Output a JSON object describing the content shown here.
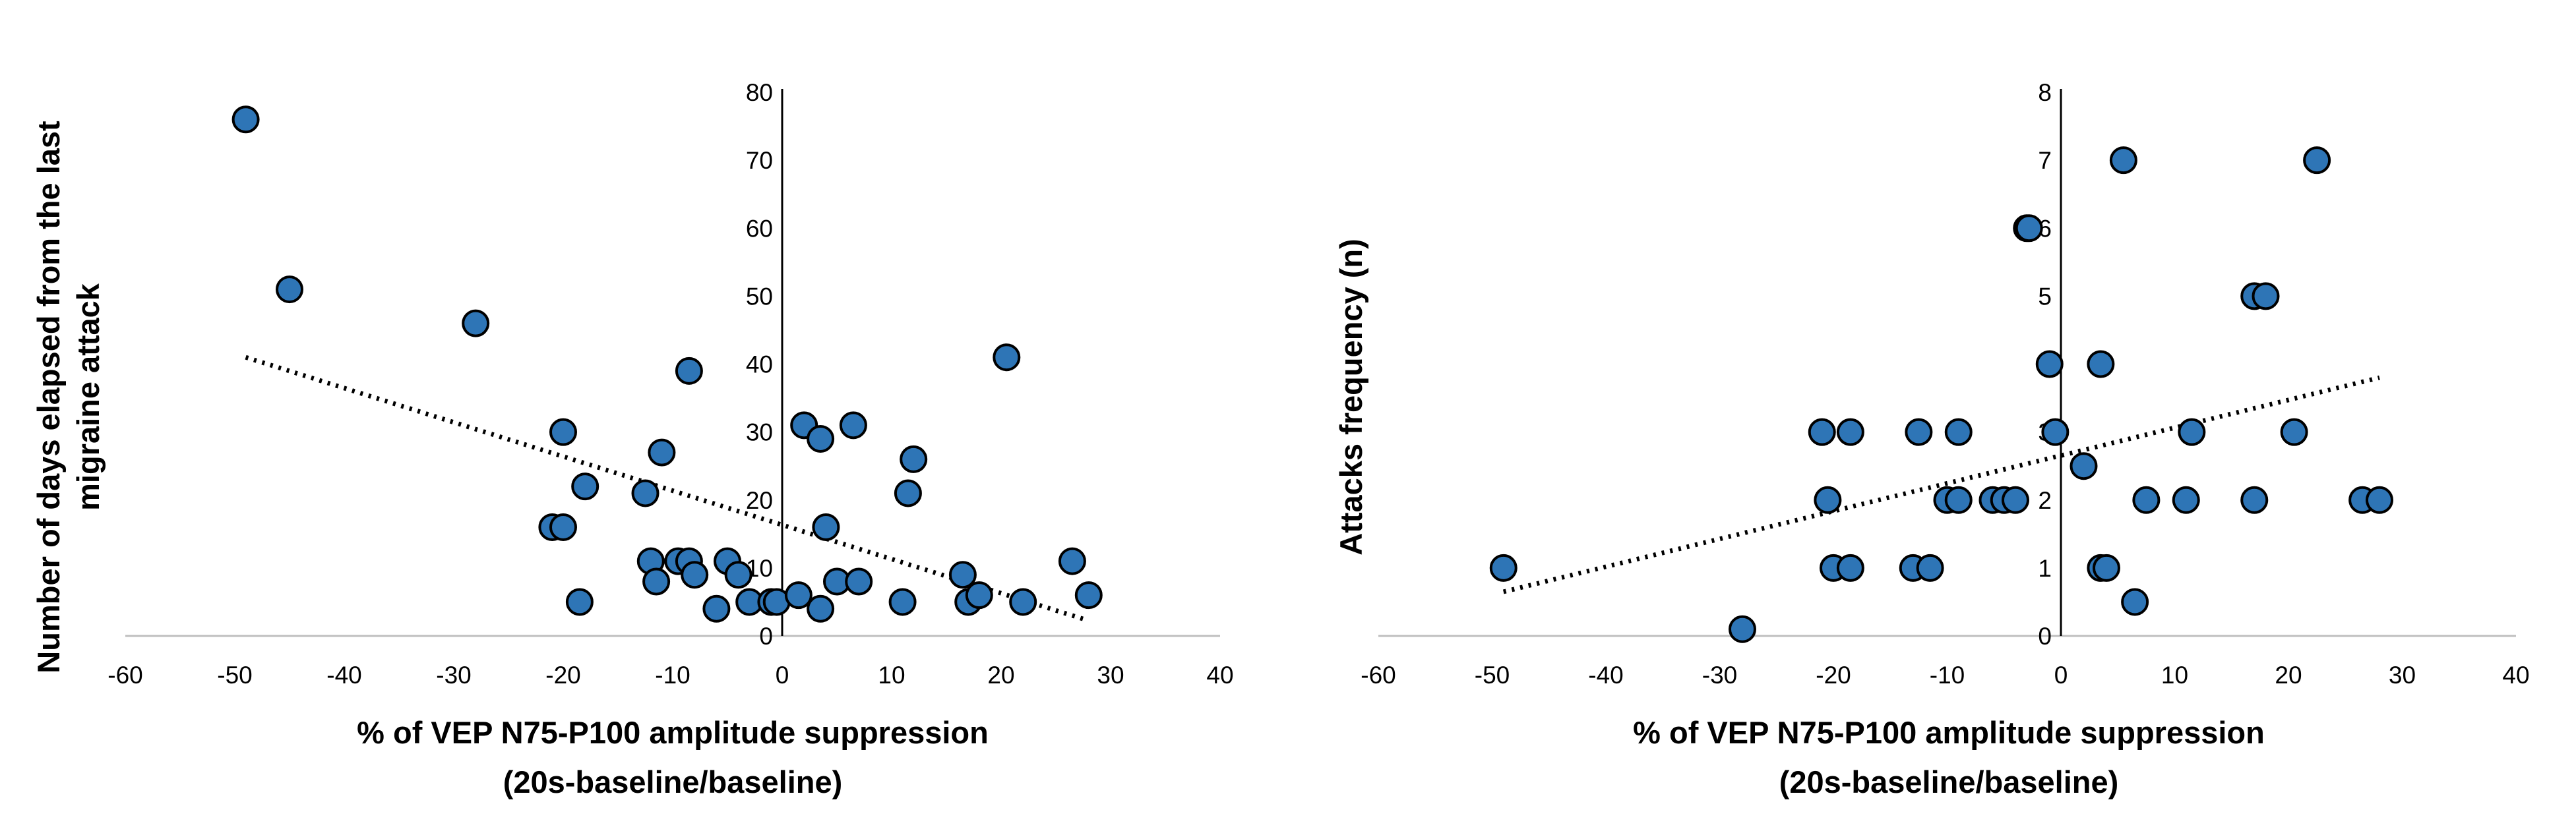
{
  "chart_data": [
    {
      "type": "scatter",
      "title": "",
      "xlabel": [
        "% of VEP N75-P100 amplitude suppression",
        "(20s-baseline/baseline)"
      ],
      "ylabel": [
        "Number of days elapsed from the last",
        "migraine attack"
      ],
      "xlim": [
        -60,
        40
      ],
      "ylim": [
        0,
        80
      ],
      "x_ticks": [
        "-60",
        "-50",
        "-40",
        "-30",
        "-20",
        "-10",
        "0",
        "10",
        "20",
        "30",
        "40"
      ],
      "y_ticks": [
        "0",
        "10",
        "20",
        "30",
        "40",
        "50",
        "60",
        "70",
        "80"
      ],
      "marker_color": "#2e75b6",
      "trendline": {
        "style": "dotted",
        "from": [
          -49,
          41
        ],
        "to": [
          27.5,
          2.5
        ]
      },
      "points": [
        {
          "x": -49,
          "y": 76
        },
        {
          "x": -45,
          "y": 51
        },
        {
          "x": -28,
          "y": 46
        },
        {
          "x": -20,
          "y": 30
        },
        {
          "x": -21,
          "y": 16
        },
        {
          "x": -20,
          "y": 16
        },
        {
          "x": -18,
          "y": 22
        },
        {
          "x": -18.5,
          "y": 5
        },
        {
          "x": -12.5,
          "y": 21
        },
        {
          "x": -11,
          "y": 27
        },
        {
          "x": -12,
          "y": 11
        },
        {
          "x": -11.5,
          "y": 8
        },
        {
          "x": -9.5,
          "y": 11
        },
        {
          "x": -8.5,
          "y": 11
        },
        {
          "x": -8,
          "y": 9
        },
        {
          "x": -8.5,
          "y": 39
        },
        {
          "x": -5,
          "y": 11
        },
        {
          "x": -4,
          "y": 9
        },
        {
          "x": -6,
          "y": 4
        },
        {
          "x": -3,
          "y": 5
        },
        {
          "x": -1,
          "y": 5
        },
        {
          "x": -0.5,
          "y": 5
        },
        {
          "x": 1.5,
          "y": 6
        },
        {
          "x": 2,
          "y": 31
        },
        {
          "x": 3.5,
          "y": 29
        },
        {
          "x": 3.5,
          "y": 4
        },
        {
          "x": 4,
          "y": 16
        },
        {
          "x": 5,
          "y": 8
        },
        {
          "x": 6.5,
          "y": 31
        },
        {
          "x": 7,
          "y": 8
        },
        {
          "x": 11,
          "y": 5
        },
        {
          "x": 11.5,
          "y": 21
        },
        {
          "x": 12,
          "y": 26
        },
        {
          "x": 16.5,
          "y": 9
        },
        {
          "x": 17,
          "y": 5
        },
        {
          "x": 18,
          "y": 6
        },
        {
          "x": 20.5,
          "y": 41
        },
        {
          "x": 22,
          "y": 5
        },
        {
          "x": 26.5,
          "y": 11
        },
        {
          "x": 28,
          "y": 6
        }
      ]
    },
    {
      "type": "scatter",
      "title": "",
      "xlabel": [
        "% of VEP N75-P100 amplitude suppression",
        "(20s-baseline/baseline)"
      ],
      "ylabel": [
        "Attacks frequency (n)"
      ],
      "xlim": [
        -60,
        40
      ],
      "ylim": [
        0,
        8
      ],
      "x_ticks": [
        "-60",
        "-50",
        "-40",
        "-30",
        "-20",
        "-10",
        "0",
        "10",
        "20",
        "30",
        "40"
      ],
      "y_ticks": [
        "0",
        "1",
        "2",
        "3",
        "4",
        "5",
        "6",
        "7",
        "8"
      ],
      "marker_color": "#2e75b6",
      "trendline": {
        "style": "dotted",
        "from": [
          -49,
          0.65
        ],
        "to": [
          28,
          3.8
        ]
      },
      "points": [
        {
          "x": -49,
          "y": 1
        },
        {
          "x": -28,
          "y": 0.1
        },
        {
          "x": -21,
          "y": 3
        },
        {
          "x": -18.5,
          "y": 3
        },
        {
          "x": -20.5,
          "y": 2
        },
        {
          "x": -20,
          "y": 1
        },
        {
          "x": -18.5,
          "y": 1
        },
        {
          "x": -13,
          "y": 1
        },
        {
          "x": -11.5,
          "y": 1
        },
        {
          "x": -12.5,
          "y": 3
        },
        {
          "x": -9,
          "y": 3
        },
        {
          "x": -10,
          "y": 2
        },
        {
          "x": -9,
          "y": 2
        },
        {
          "x": -6,
          "y": 2
        },
        {
          "x": -5,
          "y": 2
        },
        {
          "x": -4,
          "y": 2
        },
        {
          "x": -3,
          "y": 6
        },
        {
          "x": -2.8,
          "y": 6
        },
        {
          "x": -1,
          "y": 4
        },
        {
          "x": -0.5,
          "y": 3
        },
        {
          "x": 2,
          "y": 2.5
        },
        {
          "x": 3.5,
          "y": 4
        },
        {
          "x": 3.5,
          "y": 1
        },
        {
          "x": 4,
          "y": 1
        },
        {
          "x": 5.5,
          "y": 7
        },
        {
          "x": 6.5,
          "y": 0.5
        },
        {
          "x": 7.5,
          "y": 2
        },
        {
          "x": 11,
          "y": 2
        },
        {
          "x": 11.5,
          "y": 3
        },
        {
          "x": 17,
          "y": 2
        },
        {
          "x": 17,
          "y": 5
        },
        {
          "x": 18,
          "y": 5
        },
        {
          "x": 20.5,
          "y": 3
        },
        {
          "x": 22.5,
          "y": 7
        },
        {
          "x": 26.5,
          "y": 2
        },
        {
          "x": 28,
          "y": 2
        }
      ]
    }
  ]
}
